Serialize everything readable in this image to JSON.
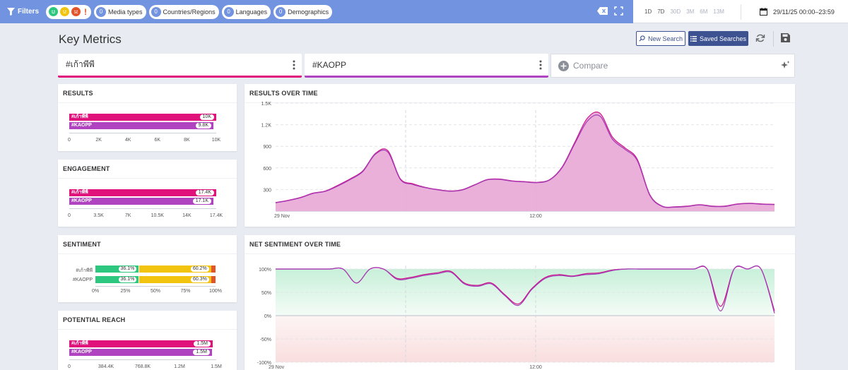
{
  "filterbar": {
    "filters_label": "Filters",
    "media_types": {
      "count": "0",
      "label": "Media types"
    },
    "countries": {
      "count": "0",
      "label": "Countries/Regions"
    },
    "languages": {
      "count": "0",
      "label": "Languages"
    },
    "demographics": {
      "count": "0",
      "label": "Demographics"
    },
    "sentiment_exclaim": "!"
  },
  "time_ranges": [
    {
      "label": "1D"
    },
    {
      "label": "7D"
    },
    {
      "label": "30D"
    },
    {
      "label": "3M"
    },
    {
      "label": "6M"
    },
    {
      "label": "13M"
    }
  ],
  "date_range": "29/11/25 00:00–23:59",
  "page_title": "Key Metrics",
  "toolbar": {
    "new_search": "New Search",
    "saved_searches": "Saved Searches"
  },
  "queries": [
    {
      "label": "#เก้าพีพี",
      "color": "#e0117a"
    },
    {
      "label": "#KAOPP",
      "color": "#b044c0"
    }
  ],
  "compare_label": "Compare",
  "results": {
    "title": "RESULTS",
    "bars": [
      {
        "name": "#เก้าพีพี",
        "value": "10K",
        "fraction": 0.998
      },
      {
        "name": "#KAOPP",
        "value": "9.8K",
        "fraction": 0.98
      }
    ],
    "ticks": [
      "0",
      "2K",
      "4K",
      "6K",
      "8K",
      "10K"
    ]
  },
  "engagement": {
    "title": "ENGAGEMENT",
    "bars": [
      {
        "name": "#เก้าพีพี",
        "value": "17.4K",
        "fraction": 1.0
      },
      {
        "name": "#KAOPP",
        "value": "17.1K",
        "fraction": 0.983
      }
    ],
    "ticks": [
      "0",
      "3.5K",
      "7K",
      "10.5K",
      "14K",
      "17.4K"
    ]
  },
  "sentiment": {
    "title": "SENTIMENT",
    "rows": [
      {
        "name": "#เก้าพีพี",
        "positive": 36.1,
        "positive_label": "36.1%",
        "neutral": 60.2,
        "neutral_label": "60.2%",
        "negative": 3.7
      },
      {
        "name": "#KAOPP",
        "positive": 36.1,
        "positive_label": "36.1%",
        "neutral": 60.3,
        "neutral_label": "60.3%",
        "negative": 3.6
      }
    ],
    "ticks": [
      "0%",
      "25%",
      "50%",
      "75%",
      "100%"
    ],
    "colors": {
      "positive": "#2ec780",
      "neutral": "#f3c40f",
      "negative": "#e4542a"
    }
  },
  "reach": {
    "title": "POTENTIAL REACH",
    "bars": [
      {
        "name": "#เก้าพีพี",
        "value": "1.5M",
        "fraction": 0.975
      },
      {
        "name": "#KAOPP",
        "value": "1.5M",
        "fraction": 0.97
      }
    ],
    "ticks": [
      "0",
      "384.4K",
      "768.8K",
      "1.2M",
      "1.5M"
    ]
  },
  "results_over_time": {
    "title": "RESULTS OVER TIME",
    "y_ticks": [
      "1.5K",
      "1.2K",
      "900",
      "600",
      "300"
    ],
    "x_ticks": [
      "29 Nov",
      "12:00"
    ]
  },
  "net_sentiment": {
    "title": "NET SENTIMENT OVER TIME",
    "y_ticks": [
      "100%",
      "50%",
      "0%",
      "-50%",
      "-100%"
    ],
    "x_ticks": [
      "29 Nov",
      "12:00"
    ]
  },
  "chart_data": [
    {
      "type": "area",
      "title": "RESULTS OVER TIME",
      "ylim": [
        0,
        1500
      ],
      "series": [
        {
          "name": "#เก้าพีพี",
          "values": [
            120,
            150,
            190,
            250,
            280,
            360,
            450,
            560,
            800,
            840,
            450,
            380,
            330,
            300,
            280,
            300,
            370,
            440,
            445,
            420,
            410,
            400,
            440,
            620,
            960,
            1290,
            1360,
            1030,
            880,
            720,
            230,
            70,
            60,
            70,
            90,
            70,
            70,
            100,
            110,
            100,
            95
          ]
        },
        {
          "name": "#KAOPP",
          "values": [
            115,
            145,
            185,
            245,
            275,
            350,
            440,
            550,
            790,
            820,
            440,
            370,
            325,
            295,
            275,
            295,
            365,
            435,
            440,
            415,
            405,
            395,
            435,
            610,
            940,
            1250,
            1320,
            1000,
            860,
            700,
            220,
            65,
            55,
            65,
            85,
            65,
            65,
            95,
            105,
            95,
            90
          ]
        }
      ]
    },
    {
      "type": "line",
      "title": "NET SENTIMENT OVER TIME",
      "ylim": [
        -100,
        100
      ],
      "series": [
        {
          "name": "#เก้าพีพี",
          "values": [
            100,
            100,
            100,
            100,
            100,
            100,
            70,
            100,
            100,
            80,
            82,
            88,
            92,
            95,
            70,
            65,
            70,
            45,
            25,
            58,
            82,
            88,
            85,
            90,
            92,
            98,
            100,
            100,
            100,
            100,
            100,
            100,
            100,
            20,
            100,
            100,
            100,
            10
          ]
        },
        {
          "name": "#KAOPP",
          "values": [
            100,
            100,
            100,
            100,
            100,
            100,
            70,
            100,
            100,
            78,
            80,
            86,
            90,
            93,
            68,
            63,
            68,
            43,
            22,
            56,
            80,
            86,
            84,
            88,
            90,
            97,
            100,
            100,
            100,
            100,
            100,
            100,
            100,
            10,
            100,
            100,
            100,
            5
          ]
        }
      ]
    }
  ]
}
